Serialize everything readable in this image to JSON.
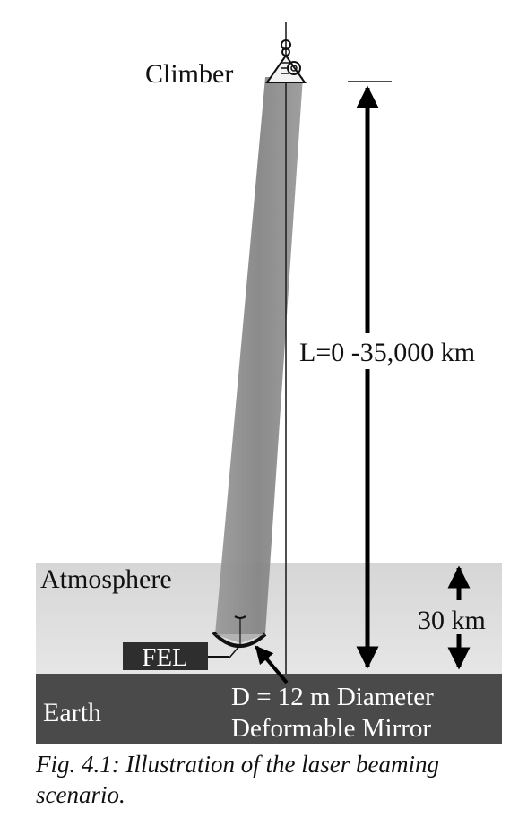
{
  "diagram": {
    "climber_label": "Climber",
    "distance_label": "L=0 -35,000 km",
    "atmosphere_label": "Atmosphere",
    "atmosphere_height_label": "30 km",
    "fel_label": "FEL",
    "earth_label": "Earth",
    "mirror_label_line1": "D = 12 m Diameter",
    "mirror_label_line2": "Deformable Mirror"
  },
  "caption": {
    "text": "Fig. 4.1: Illustration of the laser beaming scenario."
  },
  "colors": {
    "atmosphere": "#dcdcdc",
    "earth": "#4a4a4a",
    "beam": "#8c8c8c",
    "fel_box": "#2e2e2e"
  }
}
